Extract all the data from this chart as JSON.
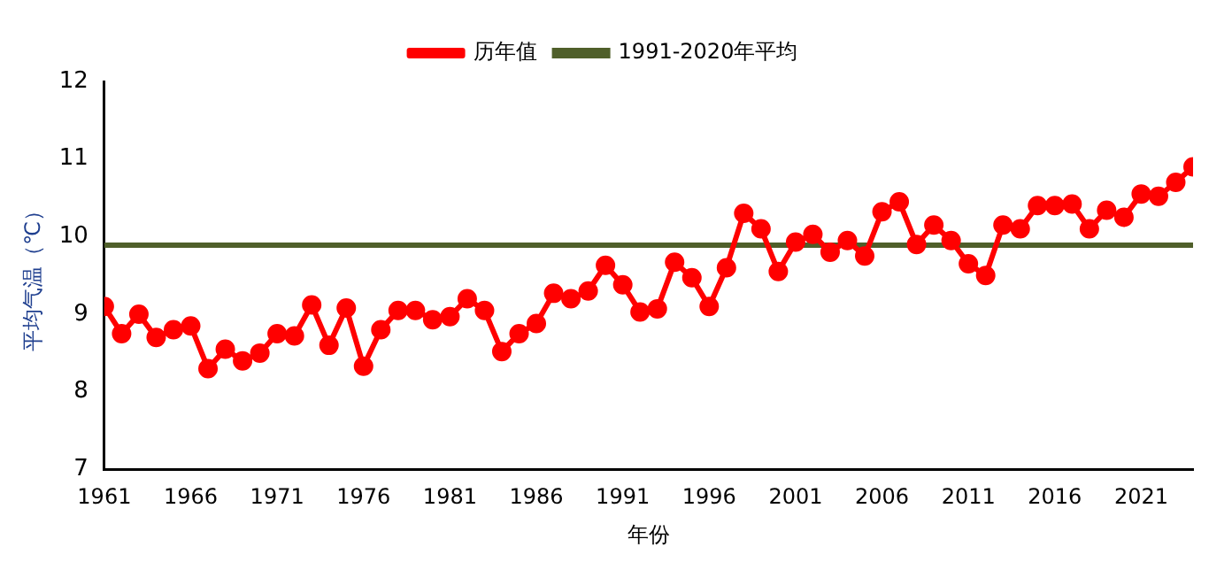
{
  "chart_data": {
    "type": "line",
    "xlabel": "年份",
    "ylabel": "平均气温（℃）",
    "x": [
      1961,
      1962,
      1963,
      1964,
      1965,
      1966,
      1967,
      1968,
      1969,
      1970,
      1971,
      1972,
      1973,
      1974,
      1975,
      1976,
      1977,
      1978,
      1979,
      1980,
      1981,
      1982,
      1983,
      1984,
      1985,
      1986,
      1987,
      1988,
      1989,
      1990,
      1991,
      1992,
      1993,
      1994,
      1995,
      1996,
      1997,
      1998,
      1999,
      2000,
      2001,
      2002,
      2003,
      2004,
      2005,
      2006,
      2007,
      2008,
      2009,
      2010,
      2011,
      2012,
      2013,
      2014,
      2015,
      2016,
      2017,
      2018,
      2019,
      2020,
      2021,
      2022,
      2023,
      2024
    ],
    "series": [
      {
        "name": "历年值",
        "color": "#ff0000",
        "values": [
          9.1,
          8.75,
          9.0,
          8.7,
          8.8,
          8.85,
          8.3,
          8.55,
          8.4,
          8.5,
          8.75,
          8.72,
          9.12,
          8.6,
          9.08,
          8.33,
          8.8,
          9.05,
          9.05,
          8.93,
          8.97,
          9.2,
          9.05,
          8.52,
          8.75,
          8.88,
          9.27,
          9.2,
          9.3,
          9.63,
          9.38,
          9.03,
          9.07,
          9.67,
          9.47,
          9.1,
          9.6,
          10.3,
          10.1,
          9.55,
          9.93,
          10.03,
          9.8,
          9.95,
          9.75,
          10.32,
          10.45,
          9.9,
          10.15,
          9.95,
          9.65,
          9.5,
          10.15,
          10.1,
          10.4,
          10.4,
          10.42,
          10.1,
          10.34,
          10.25,
          10.55,
          10.52,
          10.7,
          10.9
        ]
      }
    ],
    "ref_lines": [
      {
        "axis": "y",
        "value": 9.89,
        "label": "1991-2020年平均",
        "color": "#4f5f2a"
      }
    ],
    "xlim": [
      1961,
      2024
    ],
    "xticks": [
      1961,
      1966,
      1971,
      1976,
      1981,
      1986,
      1991,
      1996,
      2001,
      2006,
      2011,
      2016,
      2021
    ],
    "ylim": [
      7,
      12
    ],
    "yticks": [
      7,
      8,
      9,
      10,
      11,
      12
    ],
    "grid": false,
    "legend": "top",
    "marker": "circle",
    "line_style": "solid"
  }
}
